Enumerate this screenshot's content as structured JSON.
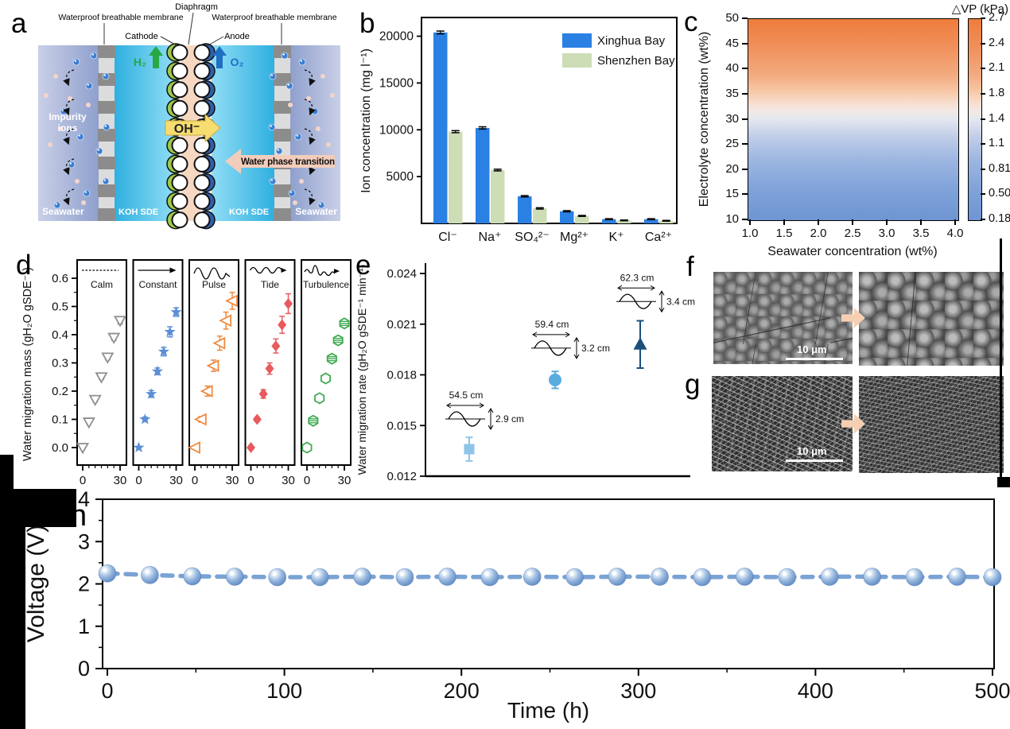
{
  "panel_a": {
    "label": "a",
    "labels": {
      "diaphragm": "Diaphragm",
      "membrane_left": "Waterproof breathable membrane",
      "membrane_right": "Waterproof breathable membrane",
      "cathode": "Cathode",
      "anode": "Anode",
      "h2": "H₂",
      "o2": "O₂",
      "oh": "OH⁻",
      "water_phase": "Water phase transition",
      "impurity_line1": "Impurity",
      "impurity_line2": "ions",
      "seawater_left": "Seawater",
      "seawater_right": "Seawater",
      "koh_left": "KOH SDE",
      "koh_right": "KOH SDE"
    }
  },
  "panel_b": {
    "label": "b"
  },
  "panel_c": {
    "label": "c"
  },
  "panel_d": {
    "label": "d"
  },
  "panel_e": {
    "label": "e"
  },
  "panel_f": {
    "label": "f",
    "scale_bar": "10 μm"
  },
  "panel_g": {
    "label": "g",
    "scale_bar": "10 μm"
  },
  "panel_h": {
    "label": "h"
  },
  "chart_data": [
    {
      "id": "b",
      "type": "bar",
      "ylabel": "Ion concentration (mg l⁻¹)",
      "categories": [
        "Cl⁻",
        "Na⁺",
        "SO₄²⁻",
        "Mg²⁺",
        "K⁺",
        "Ca²⁺"
      ],
      "series": [
        {
          "name": "Xinghua Bay",
          "color": "#2b80e4",
          "values": [
            20400,
            10200,
            2900,
            1300,
            450,
            450
          ],
          "errors": [
            150,
            120,
            70,
            60,
            50,
            50
          ]
        },
        {
          "name": "Shenzhen Bay",
          "color": "#cdddb6",
          "values": [
            9800,
            5700,
            1600,
            800,
            320,
            280
          ],
          "errors": [
            110,
            90,
            70,
            50,
            40,
            40
          ]
        }
      ],
      "ylim": [
        0,
        22000
      ],
      "yticks": [
        5000,
        10000,
        15000,
        20000
      ],
      "legend_position": "top-right"
    },
    {
      "id": "c",
      "type": "heatmap",
      "xlabel": "Seawater concentration (wt%)",
      "ylabel": "Electrolyte concentration (wt%)",
      "xticks": [
        "1.0",
        "1.5",
        "2.0",
        "2.5",
        "3.0",
        "3.5",
        "4.0"
      ],
      "yticks": [
        "50",
        "45",
        "40",
        "35",
        "30",
        "25",
        "20",
        "15",
        "10"
      ],
      "colorbar": {
        "title": "△VP (kPa)",
        "ticks": [
          "2.7",
          "2.4",
          "2.1",
          "1.8",
          "1.4",
          "1.1",
          "0.81",
          "0.50",
          "0.18"
        ]
      },
      "gradient": [
        "#ee7c3b",
        "#f3ab80",
        "#f2e9e6",
        "#c2cfe9",
        "#6e95d3"
      ],
      "description": "Vapor-pressure difference rises with electrolyte concentration (~0.18 kPa at 10 wt% to ~2.7 kPa at 50 wt%), nearly independent of seawater concentration; white transition band near 32 wt%."
    },
    {
      "id": "d",
      "type": "scatter",
      "ylabel": "Water migration mass (gH₂O gSDE⁻¹)",
      "ylim": [
        -0.05,
        0.65
      ],
      "yticks": [
        "0.0",
        "0.1",
        "0.2",
        "0.3",
        "0.4",
        "0.5",
        "0.6"
      ],
      "x": [
        0,
        5,
        10,
        15,
        20,
        25,
        30
      ],
      "xticks": [
        0,
        30
      ],
      "panels": [
        {
          "name": "Calm",
          "icon": "calm",
          "marker": "triangle-down-open",
          "color": "#8f8f8f",
          "values": [
            0.0,
            0.09,
            0.17,
            0.25,
            0.32,
            0.39,
            0.45
          ],
          "errors": [
            0,
            0.006,
            0.008,
            0.008,
            0.009,
            0.01,
            0.012
          ]
        },
        {
          "name": "Constant",
          "icon": "constant",
          "marker": "star-filled",
          "color": "#5b8ed6",
          "values": [
            0.0,
            0.1,
            0.19,
            0.27,
            0.34,
            0.41,
            0.48
          ],
          "errors": [
            0,
            0.008,
            0.012,
            0.012,
            0.015,
            0.018,
            0.015
          ]
        },
        {
          "name": "Pulse",
          "icon": "pulse",
          "marker": "triangle-left-open",
          "color": "#ee8a40",
          "values": [
            0.0,
            0.1,
            0.2,
            0.29,
            0.37,
            0.45,
            0.52
          ],
          "errors": [
            0,
            0.01,
            0.018,
            0.02,
            0.025,
            0.03,
            0.03
          ]
        },
        {
          "name": "Tide",
          "icon": "tide",
          "marker": "diamond-filled",
          "color": "#e85a5e",
          "values": [
            0.0,
            0.1,
            0.19,
            0.28,
            0.36,
            0.435,
            0.51
          ],
          "errors": [
            0,
            0.008,
            0.015,
            0.02,
            0.025,
            0.03,
            0.035
          ]
        },
        {
          "name": "Turbulence",
          "icon": "turbulence",
          "marker": "hexagon",
          "color": "#41ab52",
          "values": [
            0.0,
            0.095,
            0.175,
            0.245,
            0.315,
            0.38,
            0.44
          ],
          "errors": [
            0,
            0.008,
            0.008,
            0.01,
            0.012,
            0.012,
            0.012
          ],
          "striped": [
            false,
            true,
            false,
            false,
            true,
            true,
            true
          ]
        }
      ]
    },
    {
      "id": "e",
      "type": "scatter",
      "ylabel": "Water migration rate (gH₂O gSDE⁻¹ min⁻¹)",
      "ylim": [
        0.012,
        0.024
      ],
      "yticks": [
        "0.012",
        "0.015",
        "0.018",
        "0.021",
        "0.024"
      ],
      "points": [
        {
          "y": 0.0136,
          "error": 0.0007,
          "marker": "square",
          "color": "#8ec4e8",
          "wave_length": "54.5 cm",
          "wave_height": "2.9 cm"
        },
        {
          "y": 0.0177,
          "error": 0.0005,
          "marker": "circle",
          "color": "#5aabe0",
          "wave_length": "59.4 cm",
          "wave_height": "3.2 cm"
        },
        {
          "y": 0.0198,
          "error": 0.0014,
          "marker": "triangle",
          "color": "#1c4f7c",
          "wave_length": "62.3 cm",
          "wave_height": "3.4 cm"
        }
      ]
    },
    {
      "id": "h",
      "type": "line",
      "xlabel": "Time (h)",
      "ylabel": "Voltage (V)",
      "xlim": [
        0,
        500
      ],
      "ylim": [
        0,
        4
      ],
      "xticks": [
        0,
        100,
        200,
        300,
        400,
        500
      ],
      "yticks": [
        0,
        1,
        2,
        3,
        4
      ],
      "line_style": "dashed",
      "marker": "sphere",
      "color": "#7aa2d4",
      "x": [
        0,
        24,
        48,
        72,
        96,
        120,
        144,
        168,
        192,
        216,
        240,
        264,
        288,
        312,
        336,
        360,
        384,
        408,
        432,
        456,
        480,
        500
      ],
      "y": [
        2.25,
        2.21,
        2.18,
        2.17,
        2.16,
        2.16,
        2.17,
        2.16,
        2.17,
        2.16,
        2.17,
        2.16,
        2.17,
        2.17,
        2.16,
        2.17,
        2.16,
        2.17,
        2.17,
        2.16,
        2.17,
        2.16
      ]
    }
  ]
}
